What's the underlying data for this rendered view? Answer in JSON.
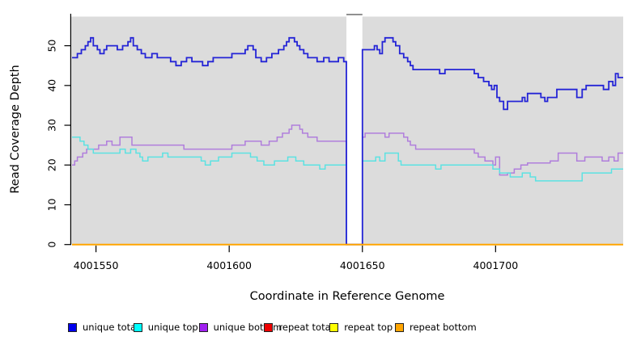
{
  "chart_data": {
    "type": "line",
    "subtype": "step-coverage-plot",
    "title": "",
    "xlabel": "Coordinate in Reference Genome",
    "ylabel": "Read Coverage Depth",
    "xlim": [
      4001540.7,
      4001747.9
    ],
    "ylim": [
      0,
      57.5
    ],
    "x_ticks": [
      4001550,
      4001600,
      4001650,
      4001700
    ],
    "y_ticks": [
      0,
      10,
      20,
      30,
      40,
      50
    ],
    "grid": false,
    "plot_bg": "#DCDCDC",
    "gap": {
      "start": 4001644,
      "end": 4001650,
      "fill": "#FFFFFF",
      "cap_color": "#909090"
    },
    "legend_position": "bottom",
    "series": [
      {
        "name": "unique total",
        "line_color": "#2424D6",
        "line_width": 1.8,
        "step_points": [
          [
            4001541,
            47
          ],
          [
            4001543,
            48
          ],
          [
            4001544.5,
            49
          ],
          [
            4001546,
            50
          ],
          [
            4001547,
            51
          ],
          [
            4001548,
            52
          ],
          [
            4001549,
            50
          ],
          [
            4001550.5,
            49
          ],
          [
            4001551.5,
            48
          ],
          [
            4001553,
            49
          ],
          [
            4001554,
            50
          ],
          [
            4001558,
            49
          ],
          [
            4001560,
            50
          ],
          [
            4001562,
            51
          ],
          [
            4001563,
            52
          ],
          [
            4001564,
            50
          ],
          [
            4001565.5,
            49
          ],
          [
            4001567,
            48
          ],
          [
            4001568.5,
            47
          ],
          [
            4001571,
            48
          ],
          [
            4001573,
            47
          ],
          [
            4001578,
            46
          ],
          [
            4001580,
            45
          ],
          [
            4001582,
            46
          ],
          [
            4001584,
            47
          ],
          [
            4001586,
            46
          ],
          [
            4001590,
            45
          ],
          [
            4001592,
            46
          ],
          [
            4001594,
            47
          ],
          [
            4001601,
            48
          ],
          [
            4001606,
            49
          ],
          [
            4001607,
            50
          ],
          [
            4001609,
            49
          ],
          [
            4001610,
            47
          ],
          [
            4001612,
            46
          ],
          [
            4001614,
            47
          ],
          [
            4001616,
            48
          ],
          [
            4001618.5,
            49
          ],
          [
            4001620.5,
            50
          ],
          [
            4001621.5,
            51
          ],
          [
            4001622.5,
            52
          ],
          [
            4001624.5,
            51
          ],
          [
            4001625.5,
            50
          ],
          [
            4001626.5,
            49
          ],
          [
            4001628,
            48
          ],
          [
            4001629.5,
            47
          ],
          [
            4001633,
            46
          ],
          [
            4001635.5,
            47
          ],
          [
            4001637.5,
            46
          ],
          [
            4001641,
            47
          ],
          [
            4001643,
            46
          ],
          [
            4001644,
            0
          ],
          [
            4001650,
            49
          ],
          [
            4001654.5,
            50
          ],
          [
            4001655.5,
            49
          ],
          [
            4001656.5,
            48
          ],
          [
            4001657.5,
            51
          ],
          [
            4001658.5,
            52
          ],
          [
            4001661.5,
            51
          ],
          [
            4001662.5,
            50
          ],
          [
            4001664,
            48
          ],
          [
            4001665.5,
            47
          ],
          [
            4001667,
            46
          ],
          [
            4001668,
            45
          ],
          [
            4001669,
            44
          ],
          [
            4001679,
            43
          ],
          [
            4001681,
            44
          ],
          [
            4001692,
            43
          ],
          [
            4001693.5,
            42
          ],
          [
            4001695.5,
            41
          ],
          [
            4001697.5,
            40
          ],
          [
            4001698.5,
            39
          ],
          [
            4001699.5,
            40
          ],
          [
            4001700.5,
            37
          ],
          [
            4001701.5,
            36
          ],
          [
            4001703,
            34
          ],
          [
            4001704.5,
            36
          ],
          [
            4001710,
            37
          ],
          [
            4001711,
            36
          ],
          [
            4001712,
            38
          ],
          [
            4001717,
            37
          ],
          [
            4001718.5,
            36
          ],
          [
            4001719.5,
            37
          ],
          [
            4001723,
            39
          ],
          [
            4001730.5,
            37
          ],
          [
            4001732.5,
            39
          ],
          [
            4001734,
            40
          ],
          [
            4001740.5,
            39
          ],
          [
            4001742.5,
            41
          ],
          [
            4001744,
            40
          ],
          [
            4001745,
            43
          ],
          [
            4001746,
            42
          ]
        ]
      },
      {
        "name": "unique top",
        "line_color": "#5CE2E2",
        "line_width": 1.5,
        "step_points": [
          [
            4001541,
            27
          ],
          [
            4001544,
            26
          ],
          [
            4001545.5,
            25
          ],
          [
            4001547,
            24
          ],
          [
            4001549,
            23
          ],
          [
            4001559,
            24
          ],
          [
            4001561,
            23
          ],
          [
            4001563,
            24
          ],
          [
            4001565,
            23
          ],
          [
            4001566.5,
            22
          ],
          [
            4001567.5,
            21
          ],
          [
            4001569.5,
            22
          ],
          [
            4001575,
            23
          ],
          [
            4001577,
            22
          ],
          [
            4001589.5,
            21
          ],
          [
            4001591,
            20
          ],
          [
            4001593,
            21
          ],
          [
            4001596,
            22
          ],
          [
            4001601,
            23
          ],
          [
            4001608,
            22
          ],
          [
            4001610.5,
            21
          ],
          [
            4001613,
            20
          ],
          [
            4001617,
            21
          ],
          [
            4001622,
            22
          ],
          [
            4001625,
            21
          ],
          [
            4001628,
            20
          ],
          [
            4001634,
            19
          ],
          [
            4001636,
            20
          ],
          [
            4001644,
            0
          ],
          [
            4001650,
            21
          ],
          [
            4001655,
            22
          ],
          [
            4001656.5,
            21
          ],
          [
            4001658.5,
            23
          ],
          [
            4001663.5,
            21
          ],
          [
            4001664.5,
            20
          ],
          [
            4001677.5,
            19
          ],
          [
            4001679.5,
            20
          ],
          [
            4001699,
            19
          ],
          [
            4001701.5,
            18
          ],
          [
            4001705.5,
            17
          ],
          [
            4001710,
            18
          ],
          [
            4001713,
            17
          ],
          [
            4001715,
            16
          ],
          [
            4001732.5,
            18
          ],
          [
            4001743.5,
            19
          ]
        ]
      },
      {
        "name": "unique bottom",
        "line_color": "#B07EDC",
        "line_width": 1.5,
        "step_points": [
          [
            4001541,
            20
          ],
          [
            4001542,
            21
          ],
          [
            4001543,
            22
          ],
          [
            4001545,
            23
          ],
          [
            4001546.5,
            24
          ],
          [
            4001551,
            25
          ],
          [
            4001554,
            26
          ],
          [
            4001556,
            25
          ],
          [
            4001559,
            27
          ],
          [
            4001563.5,
            25
          ],
          [
            4001583,
            24
          ],
          [
            4001601,
            25
          ],
          [
            4001606,
            26
          ],
          [
            4001612,
            25
          ],
          [
            4001615,
            26
          ],
          [
            4001618,
            27
          ],
          [
            4001620,
            28
          ],
          [
            4001622.5,
            29
          ],
          [
            4001623.5,
            30
          ],
          [
            4001626.5,
            29
          ],
          [
            4001627.5,
            28
          ],
          [
            4001629.5,
            27
          ],
          [
            4001633,
            26
          ],
          [
            4001644,
            0
          ],
          [
            4001650,
            27
          ],
          [
            4001651,
            28
          ],
          [
            4001658.5,
            27
          ],
          [
            4001660,
            28
          ],
          [
            4001665.5,
            27
          ],
          [
            4001667,
            26
          ],
          [
            4001668,
            25
          ],
          [
            4001670,
            24
          ],
          [
            4001692,
            23
          ],
          [
            4001693.5,
            22
          ],
          [
            4001696,
            21
          ],
          [
            4001699,
            20
          ],
          [
            4001700,
            22
          ],
          [
            4001701.5,
            17.5
          ],
          [
            4001704.5,
            18
          ],
          [
            4001707,
            19
          ],
          [
            4001709.5,
            20
          ],
          [
            4001712,
            20.5
          ],
          [
            4001720.5,
            21
          ],
          [
            4001723.5,
            23
          ],
          [
            4001730.5,
            21
          ],
          [
            4001733.5,
            22
          ],
          [
            4001740,
            21
          ],
          [
            4001742.5,
            22
          ],
          [
            4001744.5,
            21
          ],
          [
            4001746,
            23
          ]
        ]
      },
      {
        "name": "repeat total",
        "line_color": "#DD0000",
        "line_width": 1.5,
        "step_points": [
          [
            4001541,
            0
          ]
        ]
      },
      {
        "name": "repeat top",
        "line_color": "#EEEE00",
        "line_width": 1.5,
        "step_points": [
          [
            4001541,
            0
          ]
        ]
      },
      {
        "name": "repeat bottom",
        "line_color": "#FFA500",
        "line_width": 2,
        "step_points": [
          [
            4001541,
            0
          ]
        ]
      }
    ],
    "draw_order": [
      2,
      1,
      0,
      3,
      4,
      5
    ]
  },
  "legend": {
    "items": [
      {
        "label": "unique total",
        "color": "#0000EE"
      },
      {
        "label": "unique top",
        "color": "#00FFFF"
      },
      {
        "label": "unique bottom",
        "color": "#A020F0"
      },
      {
        "label": "repeat total",
        "color": "#EE0000"
      },
      {
        "label": "repeat top",
        "color": "#FFFF00"
      },
      {
        "label": "repeat bottom",
        "color": "#FFA500"
      }
    ]
  }
}
